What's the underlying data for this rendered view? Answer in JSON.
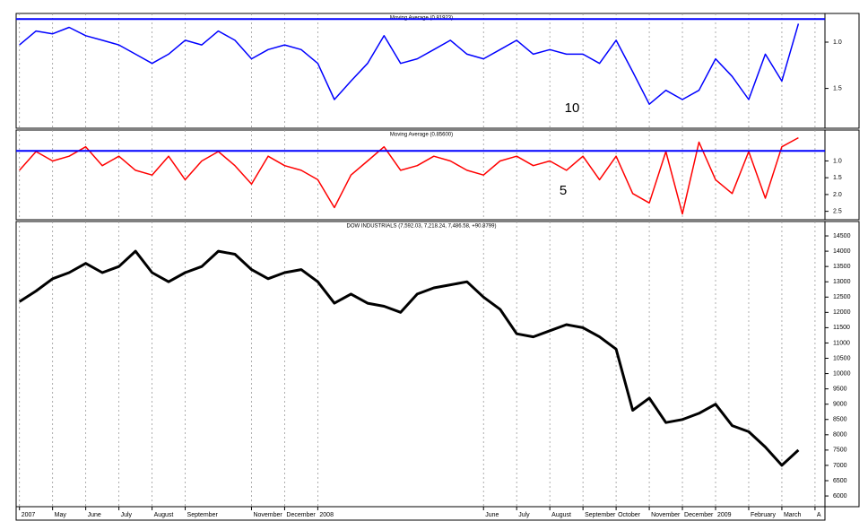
{
  "chart_data": [
    {
      "type": "line",
      "title": "Moving Average (0.81923)",
      "annotation": "10",
      "color": "#0000ff",
      "inverted": true,
      "xlim": [
        -0.1,
        24.3
      ],
      "ylim": [
        0.69,
        1.93
      ],
      "yticks": [
        {
          "value": 1,
          "label": "1.0"
        },
        1.5
      ],
      "reference_line": 0.75,
      "x": [
        0,
        0.5,
        1,
        1.5,
        2,
        2.5,
        3,
        3.5,
        4,
        4.5,
        5,
        5.5,
        6,
        6.5,
        7,
        7.5,
        8,
        8.5,
        9,
        9.5,
        10,
        10.5,
        11,
        11.5,
        12,
        12.5,
        13,
        13.5,
        14,
        14.5,
        15,
        15.5,
        16,
        16.5,
        17,
        17.5,
        18,
        18.5,
        19,
        19.5,
        20,
        20.5,
        21,
        21.5,
        22,
        22.5,
        23,
        23.5
      ],
      "values": [
        1.03,
        0.88,
        0.91,
        0.84,
        0.93,
        0.98,
        1.03,
        1.13,
        1.23,
        1.13,
        0.98,
        1.03,
        0.88,
        0.98,
        1.18,
        1.08,
        1.03,
        1.08,
        1.23,
        1.62,
        1.42,
        1.23,
        0.93,
        1.23,
        1.18,
        1.08,
        0.98,
        1.13,
        1.18,
        1.08,
        0.98,
        1.13,
        1.08,
        1.13,
        1.13,
        1.23,
        0.98,
        1.32,
        1.67,
        1.52,
        1.62,
        1.52,
        1.18,
        1.37,
        1.62,
        1.13,
        1.42,
        0.8
      ]
    },
    {
      "type": "line",
      "title": "Moving Average (0.85600)",
      "annotation": "5",
      "color": "#ff0000",
      "inverted": true,
      "xlim": [
        -0.1,
        24.3
      ],
      "ylim": [
        0.08,
        2.75
      ],
      "yticks": [
        {
          "value": 1,
          "label": "1.0"
        },
        1.5,
        {
          "value": 2,
          "label": "2.0"
        },
        2.5
      ],
      "reference_line": 0.7,
      "x": [
        0,
        0.5,
        1,
        1.5,
        2,
        2.5,
        3,
        3.5,
        4,
        4.5,
        5,
        5.5,
        6,
        6.5,
        7,
        7.5,
        8,
        8.5,
        9,
        9.5,
        10,
        10.5,
        11,
        11.5,
        12,
        12.5,
        13,
        13.5,
        14,
        14.5,
        15,
        15.5,
        16,
        16.5,
        17,
        17.5,
        18,
        18.5,
        19,
        19.5,
        20,
        20.5,
        21,
        21.5,
        22,
        22.5,
        23,
        23.5
      ],
      "values": [
        1.28,
        0.72,
        1.0,
        0.86,
        0.58,
        1.14,
        0.86,
        1.28,
        1.42,
        0.86,
        1.56,
        1.0,
        0.72,
        1.14,
        1.69,
        0.86,
        1.14,
        1.28,
        1.56,
        2.39,
        1.42,
        1.0,
        0.58,
        1.28,
        1.14,
        0.86,
        1.0,
        1.28,
        1.42,
        1.0,
        0.86,
        1.14,
        1.0,
        1.28,
        0.86,
        1.56,
        0.86,
        1.97,
        2.25,
        0.72,
        2.58,
        0.44,
        1.56,
        1.97,
        0.72,
        2.11,
        0.58,
        0.31
      ]
    },
    {
      "type": "line",
      "title": "DOW INDUSTRIALS (7,592.03, 7,218.24, 7,486.58, +90.8799)",
      "color": "#000000",
      "xlim": [
        -0.1,
        24.3
      ],
      "ylim": [
        5650,
        14970
      ],
      "yticks": [
        6000,
        6500,
        7000,
        7500,
        8000,
        8500,
        9000,
        9500,
        10000,
        10500,
        11000,
        11500,
        12000,
        12500,
        13000,
        13500,
        14000,
        14500
      ],
      "xticks": [
        {
          "value": 0,
          "label": "2007"
        },
        {
          "value": 1,
          "label": "May"
        },
        {
          "value": 2,
          "label": "June"
        },
        {
          "value": 3,
          "label": "July"
        },
        {
          "value": 4,
          "label": "August"
        },
        {
          "value": 5,
          "label": "September"
        },
        {
          "value": 7,
          "label": "November"
        },
        {
          "value": 8,
          "label": "December"
        },
        {
          "value": 9,
          "label": "2008"
        },
        {
          "value": 14,
          "label": "June"
        },
        {
          "value": 15,
          "label": "July"
        },
        {
          "value": 16,
          "label": "August"
        },
        {
          "value": 17,
          "label": "September"
        },
        {
          "value": 18,
          "label": "October"
        },
        {
          "value": 19,
          "label": "November"
        },
        {
          "value": 20,
          "label": "December"
        },
        {
          "value": 21,
          "label": "2009"
        },
        {
          "value": 22,
          "label": "February"
        },
        {
          "value": 23,
          "label": "March"
        },
        {
          "value": 24,
          "label": "A"
        }
      ],
      "x": [
        0,
        0.5,
        1,
        1.5,
        2,
        2.5,
        3,
        3.5,
        4,
        4.5,
        5,
        5.5,
        6,
        6.5,
        7,
        7.5,
        8,
        8.5,
        9,
        9.5,
        10,
        10.5,
        11,
        11.5,
        12,
        12.5,
        13,
        13.5,
        14,
        14.5,
        15,
        15.5,
        16,
        16.5,
        17,
        17.5,
        18,
        18.5,
        19,
        19.5,
        20,
        20.5,
        21,
        21.5,
        22,
        22.5,
        23,
        23.5
      ],
      "values": [
        12350,
        12700,
        13100,
        13300,
        13600,
        13300,
        13500,
        14000,
        13300,
        13000,
        13300,
        13500,
        14000,
        13900,
        13400,
        13100,
        13300,
        13400,
        13000,
        12300,
        12600,
        12300,
        12200,
        12000,
        12600,
        12800,
        12900,
        13000,
        12500,
        12100,
        11300,
        11200,
        11400,
        11600,
        11500,
        11200,
        10800,
        8800,
        9200,
        8400,
        8500,
        8700,
        9000,
        8300,
        8100,
        7600,
        7000,
        7500
      ]
    }
  ]
}
